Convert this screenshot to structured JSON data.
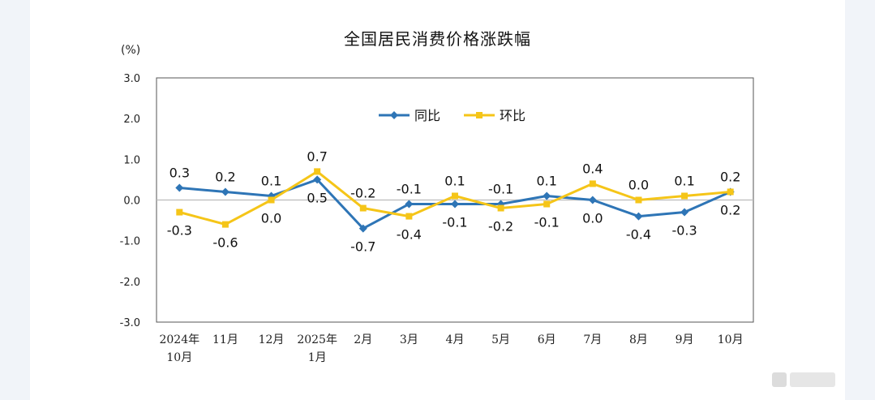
{
  "chart_data": {
    "type": "line",
    "title": "全国居民消费价格涨跌幅",
    "ylabel": "(%)",
    "ylim": [
      -3.0,
      3.0
    ],
    "yticks": [
      "3.0",
      "2.0",
      "1.0",
      "0.0",
      "-1.0",
      "-2.0",
      "-3.0"
    ],
    "categories": [
      [
        "2024年",
        "10月"
      ],
      [
        "11月"
      ],
      [
        "12月"
      ],
      [
        "2025年",
        "1月"
      ],
      [
        "2月"
      ],
      [
        "3月"
      ],
      [
        "4月"
      ],
      [
        "5月"
      ],
      [
        "6月"
      ],
      [
        "7月"
      ],
      [
        "8月"
      ],
      [
        "9月"
      ],
      [
        "10月"
      ]
    ],
    "legend_position": "top-center",
    "grid": false,
    "series": [
      {
        "name": "同比",
        "color": "#2e75b6",
        "marker": "diamond",
        "values": [
          0.3,
          0.2,
          0.1,
          0.5,
          -0.7,
          -0.1,
          -0.1,
          -0.1,
          0.1,
          0.0,
          -0.4,
          -0.3,
          0.2
        ],
        "labels": [
          "0.3",
          "0.2",
          "0.1",
          "0.5",
          "-0.7",
          "-0.1",
          "-0.1",
          "-0.1",
          "0.1",
          "0.0",
          "-0.4",
          "-0.3",
          "0.2"
        ],
        "label_pos": [
          "above",
          "above",
          "above",
          "below",
          "below",
          "above",
          "below",
          "above",
          "above",
          "below",
          "below",
          "below",
          "below"
        ]
      },
      {
        "name": "环比",
        "color": "#f5c518",
        "marker": "square",
        "values": [
          -0.3,
          -0.6,
          0.0,
          0.7,
          -0.2,
          -0.4,
          0.1,
          -0.2,
          -0.1,
          0.4,
          0.0,
          0.1,
          0.2
        ],
        "labels": [
          "-0.3",
          "-0.6",
          "0.0",
          "0.7",
          "-0.2",
          "-0.4",
          "0.1",
          "-0.2",
          "-0.1",
          "0.4",
          "0.0",
          "0.1",
          "0.2"
        ],
        "label_pos": [
          "below",
          "below",
          "below",
          "above",
          "above",
          "below",
          "above",
          "below",
          "below",
          "above",
          "above",
          "above",
          "above"
        ]
      }
    ]
  }
}
